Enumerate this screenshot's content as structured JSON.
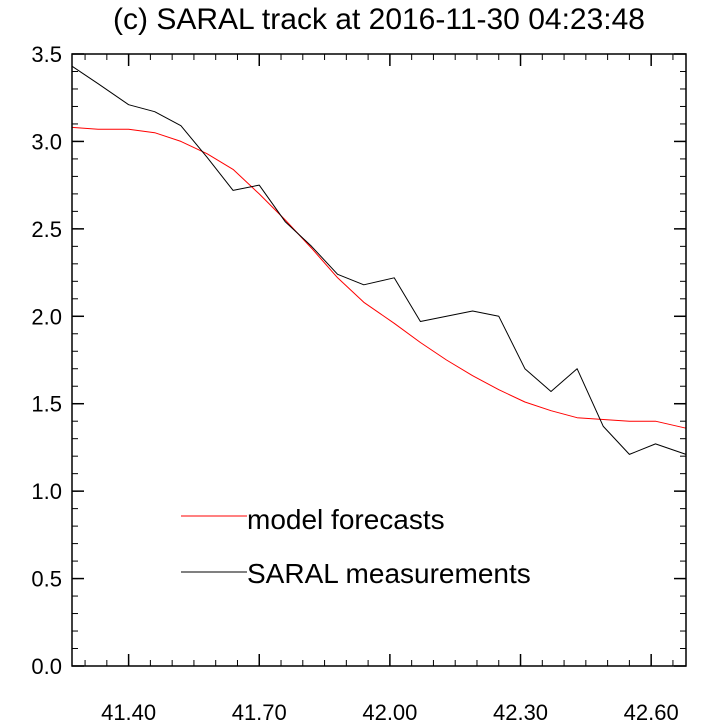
{
  "chart_data": {
    "type": "line",
    "title": "(c) SARAL track at 2016-11-30 04:23:48",
    "xlabel": "",
    "ylabel": "",
    "xlim": [
      41.27,
      42.68
    ],
    "ylim": [
      0.0,
      3.5
    ],
    "x_ticks": [
      "41.40",
      "41.70",
      "42.00",
      "42.30",
      "42.60"
    ],
    "y_ticks": [
      "0.0",
      "0.5",
      "1.0",
      "1.5",
      "2.0",
      "2.5",
      "3.0",
      "3.5"
    ],
    "grid": false,
    "legend_position": "lower-left",
    "series": [
      {
        "name": "model forecasts",
        "color": "#ff0000",
        "x": [
          41.27,
          41.33,
          41.4,
          41.46,
          41.52,
          41.58,
          41.64,
          41.7,
          41.76,
          41.82,
          41.88,
          41.94,
          42.01,
          42.07,
          42.13,
          42.19,
          42.25,
          42.31,
          42.37,
          42.43,
          42.49,
          42.55,
          42.61,
          42.68
        ],
        "y": [
          3.08,
          3.07,
          3.07,
          3.05,
          3.0,
          2.93,
          2.84,
          2.7,
          2.55,
          2.39,
          2.22,
          2.08,
          1.96,
          1.85,
          1.75,
          1.66,
          1.58,
          1.51,
          1.46,
          1.42,
          1.41,
          1.4,
          1.4,
          1.36
        ]
      },
      {
        "name": "SARAL measurements",
        "color": "#000000",
        "x": [
          41.27,
          41.33,
          41.4,
          41.46,
          41.52,
          41.58,
          41.64,
          41.7,
          41.76,
          41.82,
          41.88,
          41.94,
          42.01,
          42.07,
          42.13,
          42.19,
          42.25,
          42.31,
          42.37,
          42.43,
          42.49,
          42.55,
          42.61,
          42.68
        ],
        "y": [
          3.43,
          3.33,
          3.21,
          3.17,
          3.09,
          2.91,
          2.72,
          2.75,
          2.54,
          2.4,
          2.24,
          2.18,
          2.22,
          1.97,
          2.0,
          2.03,
          2.0,
          1.7,
          1.57,
          1.7,
          1.37,
          1.21,
          1.27,
          1.21
        ]
      }
    ]
  }
}
